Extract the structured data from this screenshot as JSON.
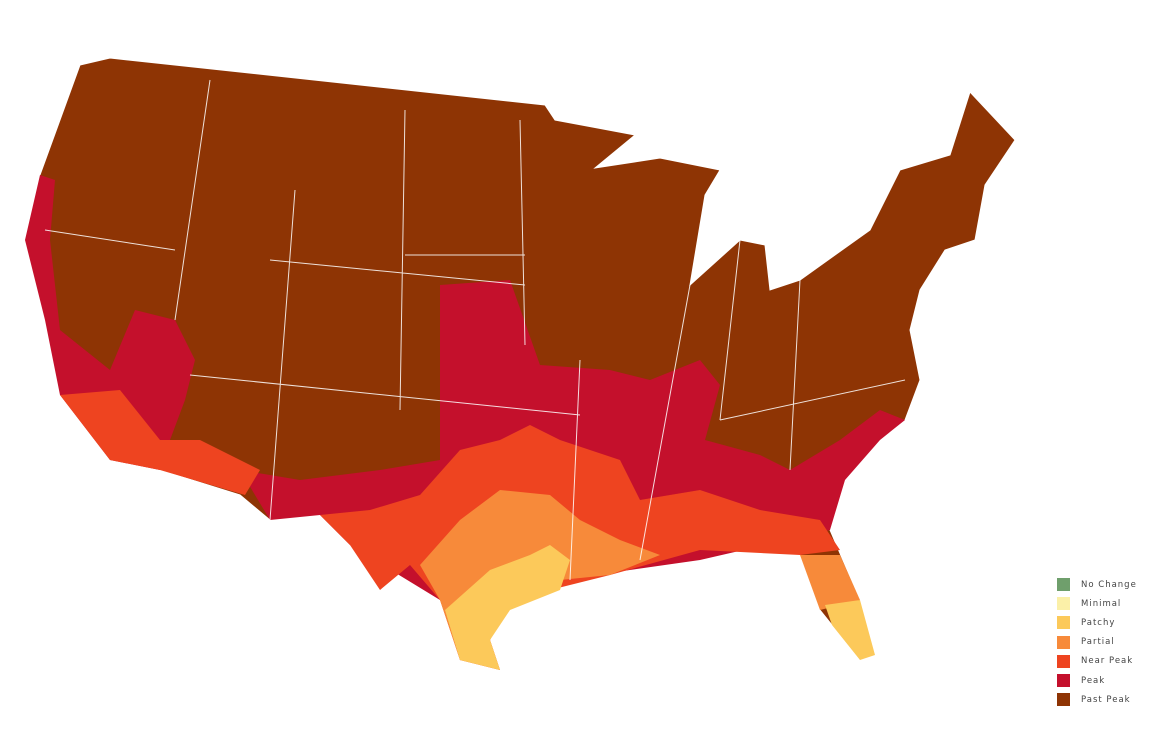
{
  "legend": {
    "items": [
      {
        "label": "No Change",
        "color": "#6f9f6c"
      },
      {
        "label": "Minimal",
        "color": "#fbf0a8"
      },
      {
        "label": "Patchy",
        "color": "#fcc95a"
      },
      {
        "label": "Partial",
        "color": "#f78a3a"
      },
      {
        "label": "Near Peak",
        "color": "#ee4420"
      },
      {
        "label": "Peak",
        "color": "#c4102c"
      },
      {
        "label": "Past Peak",
        "color": "#8e3404"
      }
    ]
  },
  "map": {
    "region": "Contiguous United States by county",
    "border_color": "#ffffff"
  }
}
